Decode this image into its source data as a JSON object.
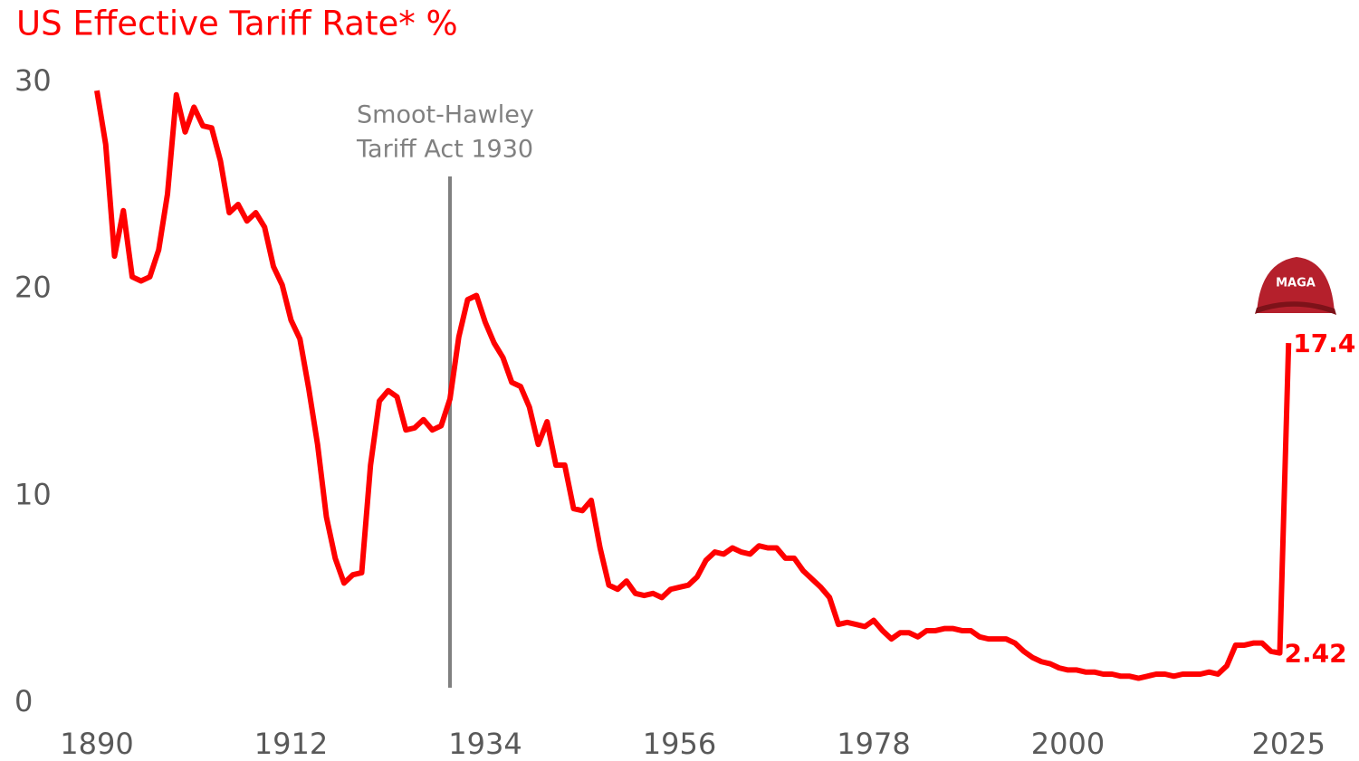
{
  "chart_data": {
    "type": "line",
    "title": "US Effective  Tariff Rate* %",
    "x": [
      1890,
      1891,
      1892,
      1893,
      1894,
      1895,
      1896,
      1897,
      1898,
      1899,
      1900,
      1901,
      1902,
      1903,
      1904,
      1905,
      1906,
      1907,
      1908,
      1909,
      1910,
      1911,
      1912,
      1913,
      1914,
      1915,
      1916,
      1917,
      1918,
      1919,
      1920,
      1921,
      1922,
      1923,
      1924,
      1925,
      1926,
      1927,
      1928,
      1929,
      1930,
      1931,
      1932,
      1933,
      1934,
      1935,
      1936,
      1937,
      1938,
      1939,
      1940,
      1941,
      1942,
      1943,
      1944,
      1945,
      1946,
      1947,
      1948,
      1949,
      1950,
      1951,
      1952,
      1953,
      1954,
      1955,
      1956,
      1957,
      1958,
      1959,
      1960,
      1961,
      1962,
      1963,
      1964,
      1965,
      1966,
      1967,
      1968,
      1969,
      1970,
      1971,
      1972,
      1973,
      1974,
      1975,
      1976,
      1977,
      1978,
      1979,
      1980,
      1981,
      1982,
      1983,
      1984,
      1985,
      1986,
      1987,
      1988,
      1989,
      1990,
      1991,
      1992,
      1993,
      1994,
      1995,
      1996,
      1997,
      1998,
      1999,
      2000,
      2001,
      2002,
      2003,
      2004,
      2005,
      2006,
      2007,
      2008,
      2009,
      2010,
      2011,
      2012,
      2013,
      2014,
      2015,
      2016,
      2017,
      2018,
      2019,
      2020,
      2021,
      2022,
      2023,
      2024,
      2025
    ],
    "values": [
      29.6,
      27.0,
      21.6,
      23.8,
      20.6,
      20.4,
      20.6,
      21.9,
      24.6,
      29.4,
      27.6,
      28.8,
      27.9,
      27.8,
      26.2,
      23.7,
      24.1,
      23.3,
      23.7,
      23.0,
      21.1,
      20.2,
      18.5,
      17.6,
      15.2,
      12.5,
      9.0,
      7.0,
      5.8,
      6.2,
      6.3,
      11.5,
      14.6,
      15.1,
      14.8,
      13.2,
      13.3,
      13.7,
      13.2,
      13.4,
      14.7,
      17.7,
      19.5,
      19.7,
      18.4,
      17.4,
      16.7,
      15.5,
      15.3,
      14.3,
      12.5,
      13.6,
      11.5,
      11.5,
      9.4,
      9.3,
      9.8,
      7.5,
      5.7,
      5.5,
      5.9,
      5.3,
      5.2,
      5.3,
      5.1,
      5.5,
      5.6,
      5.7,
      6.1,
      6.9,
      7.3,
      7.2,
      7.5,
      7.3,
      7.2,
      7.6,
      7.5,
      7.5,
      7.0,
      7.0,
      6.4,
      6.0,
      5.6,
      5.1,
      3.8,
      3.9,
      3.8,
      3.7,
      4.0,
      3.5,
      3.1,
      3.4,
      3.4,
      3.2,
      3.5,
      3.5,
      3.6,
      3.6,
      3.5,
      3.5,
      3.2,
      3.1,
      3.1,
      3.1,
      2.9,
      2.5,
      2.2,
      2.0,
      1.9,
      1.7,
      1.6,
      1.6,
      1.5,
      1.5,
      1.4,
      1.4,
      1.3,
      1.3,
      1.2,
      1.3,
      1.4,
      1.4,
      1.3,
      1.4,
      1.4,
      1.4,
      1.5,
      1.4,
      1.8,
      2.8,
      2.8,
      2.9,
      2.9,
      2.5,
      2.42,
      17.4
    ],
    "value_labels": [
      null,
      null,
      null,
      null,
      null,
      null,
      null,
      null,
      null,
      null,
      null,
      null,
      null,
      null,
      null,
      null,
      null,
      null,
      null,
      null,
      null,
      null,
      null,
      null,
      null,
      null,
      null,
      null,
      null,
      null,
      null,
      null,
      null,
      null,
      null,
      null,
      null,
      null,
      null,
      null,
      null,
      null,
      null,
      null,
      null,
      null,
      null,
      null,
      null,
      null,
      null,
      null,
      null,
      null,
      null,
      null,
      null,
      null,
      null,
      null,
      null,
      null,
      null,
      null,
      null,
      null,
      null,
      null,
      null,
      null,
      null,
      null,
      null,
      null,
      null,
      null,
      null,
      null,
      null,
      null,
      null,
      null,
      null,
      null,
      null,
      null,
      null,
      null,
      null,
      null,
      null,
      null,
      null,
      null,
      null,
      null,
      null,
      null,
      null,
      null,
      null,
      null,
      null,
      null,
      null,
      null,
      null,
      null,
      null,
      null,
      null,
      null,
      null,
      null,
      null,
      null,
      null,
      null,
      null,
      null,
      null,
      null,
      null,
      null,
      null,
      null,
      null,
      null,
      null,
      null,
      null,
      null,
      null,
      null,
      "2.42",
      "17.4"
    ],
    "color": "#ff0000",
    "xlim": [
      1886,
      2030
    ],
    "xticks": [
      1890,
      1912,
      1934,
      1956,
      1978,
      2000,
      2025
    ],
    "ylim": [
      0,
      30
    ],
    "yticks": [
      0,
      10,
      20,
      30
    ],
    "grid": false,
    "annotation": {
      "x": 1930,
      "text": [
        "Smoot-Hawley",
        "Tariff Act 1930"
      ]
    },
    "icon_label": "MAGA"
  }
}
